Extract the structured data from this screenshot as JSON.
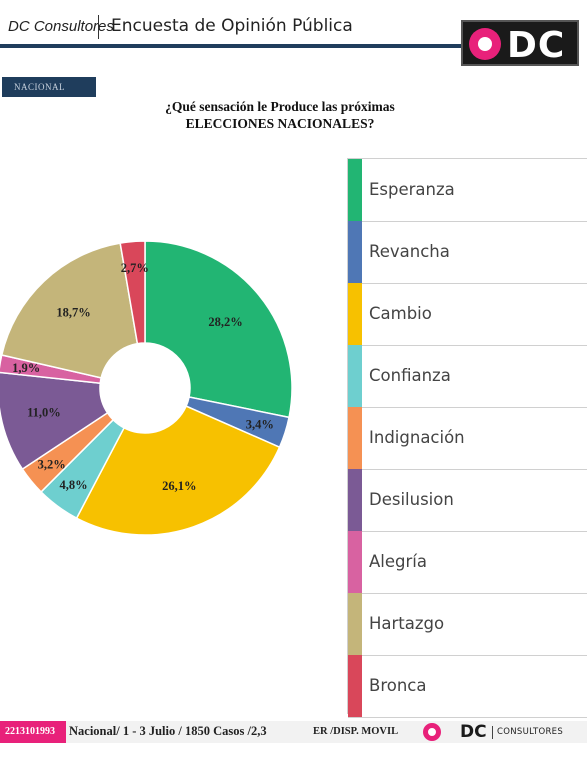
{
  "header": {
    "brand": "DC Consultores",
    "title": "Encuesta de Opinión Pública",
    "logo_text": "DC"
  },
  "section_tag": "NACIONAL",
  "question": {
    "line1": "¿Qué sensación le Produce las próximas",
    "line2": "ELECCIONES NACIONALES?"
  },
  "chart_data": {
    "type": "pie",
    "categories": [
      "Esperanza",
      "Revancha",
      "Cambio",
      "Confianza",
      "Indignación",
      "Desilusion",
      "Alegría",
      "Hartazgo",
      "Bronca"
    ],
    "values": [
      28.2,
      3.4,
      26.1,
      4.8,
      3.2,
      11.0,
      1.9,
      18.7,
      2.7
    ],
    "value_labels": [
      "28,2%",
      "3,4%",
      "26,1%",
      "4,8%",
      "3,2%",
      "11,0%",
      "1,9%",
      "18,7%",
      "2,7%"
    ],
    "colors": [
      "#22b573",
      "#4f77b5",
      "#f7c100",
      "#6ecfcf",
      "#f59153",
      "#7b5a95",
      "#d862a1",
      "#c4b57a",
      "#d9475a"
    ],
    "donut": true,
    "legend": "right"
  },
  "footer": {
    "phone": "2213101993",
    "info": "Nacional/ 1 - 3 Julio / 1850 Casos /2,3",
    "er": "ER /DISP. MOVIL",
    "logo_text": "DC",
    "consultores": "CONSULTORES"
  }
}
